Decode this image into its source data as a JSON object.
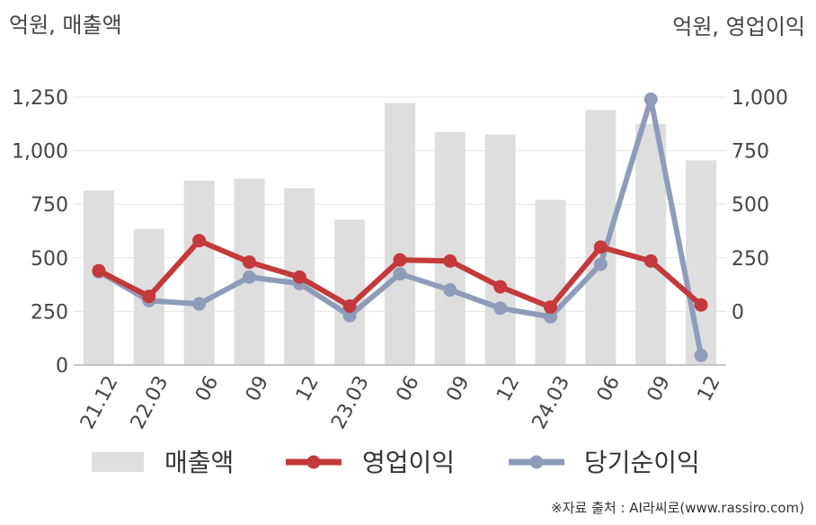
{
  "units": {
    "left": "억원, 매출액",
    "right": "억원, 영업이익"
  },
  "source": "※자료 출처 : AI라씨로(www.rassiro.com)",
  "chart_data": {
    "type": "bar+line",
    "categories": [
      "21.12",
      "22.03",
      "06",
      "09",
      "12",
      "23.03",
      "06",
      "09",
      "12",
      "24.03",
      "06",
      "09",
      "12"
    ],
    "left_axis": {
      "ylim": [
        0,
        1250
      ],
      "ticks": [
        0,
        250,
        500,
        750,
        1000,
        1250
      ],
      "tick_labels": [
        "0",
        "250",
        "500",
        "750",
        "1,000",
        "1,250"
      ]
    },
    "right_axis": {
      "ylim": [
        -250,
        1000
      ],
      "ticks": [
        0,
        250,
        500,
        750,
        1000
      ],
      "tick_labels": [
        "0",
        "250",
        "500",
        "750",
        "1,000"
      ]
    },
    "series": [
      {
        "name": "매출액",
        "type": "bar",
        "axis": "left",
        "color": "#dedede",
        "values": [
          815,
          635,
          860,
          870,
          825,
          678,
          1222,
          1087,
          1075,
          770,
          1190,
          1125,
          955
        ]
      },
      {
        "name": "영업이익",
        "type": "line",
        "axis": "right",
        "color": "#c4393a",
        "values": [
          190,
          70,
          330,
          230,
          160,
          25,
          240,
          235,
          115,
          20,
          300,
          235,
          30
        ]
      },
      {
        "name": "당기순이익",
        "type": "line",
        "axis": "right",
        "color": "#8f9cb9",
        "values": [
          185,
          50,
          35,
          160,
          130,
          -20,
          175,
          100,
          15,
          -25,
          220,
          990,
          -205
        ]
      }
    ],
    "grid": true,
    "legend_position": "bottom"
  }
}
